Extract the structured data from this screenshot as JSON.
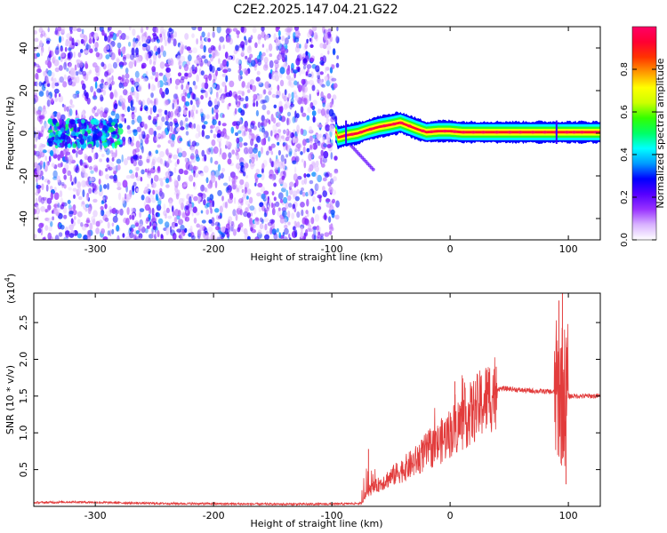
{
  "figure": {
    "title": "C2E2.2025.147.04.21.G22"
  },
  "chart_data": [
    {
      "type": "heatmap",
      "name": "spectrogram",
      "xlabel": "Height of straight line (km)",
      "ylabel": "Frequency (Hz)",
      "xlim": [
        -352,
        127
      ],
      "ylim": [
        -50,
        50
      ],
      "xticks": [
        -300,
        -200,
        -100,
        0,
        100
      ],
      "yticks": [
        -40,
        -20,
        0,
        20,
        40
      ],
      "grid": false,
      "colorbar": {
        "label": "Normalized spectral amplitude",
        "range": [
          0,
          1
        ],
        "ticks": [
          0.0,
          0.2,
          0.4,
          0.6,
          0.8
        ],
        "colormap": [
          "#ffffff",
          "#d9b3ff",
          "#9933ff",
          "#5500ff",
          "#0000ff",
          "#0099ff",
          "#00ffff",
          "#00ff66",
          "#33ff00",
          "#ccff00",
          "#ffff00",
          "#ff9900",
          "#ff3300",
          "#ff0033",
          "#ff0066"
        ]
      },
      "regions": {
        "noise_band": {
          "x": [
            -352,
            -95
          ],
          "level": 0.18
        },
        "noise_cluster": {
          "x": [
            -340,
            -278
          ],
          "center_freq": 0,
          "level": 0.35
        },
        "signal_band": {
          "x": [
            -97,
            127
          ],
          "level": 0.9
        },
        "spur": {
          "x": [
            -85,
            -65
          ],
          "freq": [
            -5,
            -17
          ],
          "level": 0.2
        },
        "signal_freq_profile": [
          {
            "x": -95,
            "f": -2
          },
          {
            "x": -88,
            "f": -1
          },
          {
            "x": -78,
            "f": 0
          },
          {
            "x": -70,
            "f": 1.5
          },
          {
            "x": -60,
            "f": 3
          },
          {
            "x": -50,
            "f": 4
          },
          {
            "x": -42,
            "f": 5
          },
          {
            "x": -35,
            "f": 3.5
          },
          {
            "x": -28,
            "f": 2
          },
          {
            "x": -20,
            "f": 0.5
          },
          {
            "x": -10,
            "f": 1
          },
          {
            "x": 0,
            "f": 1
          },
          {
            "x": 10,
            "f": 0.5
          },
          {
            "x": 30,
            "f": 0.5
          },
          {
            "x": 60,
            "f": 0.5
          },
          {
            "x": 90,
            "f": 0.5
          },
          {
            "x": 127,
            "f": 0.5
          }
        ]
      }
    },
    {
      "type": "line",
      "name": "snr",
      "xlabel": "Height of straight line (km)",
      "ylabel": "SNR (10 * v/v)",
      "y_multiplier": "(x10",
      "y_multiplier_exp": "4",
      "xlim": [
        -352,
        127
      ],
      "ylim": [
        0,
        2.9
      ],
      "xticks": [
        -300,
        -200,
        -100,
        0,
        100
      ],
      "yticks": [
        0.5,
        1.0,
        1.5,
        2.0,
        2.5
      ],
      "ytick_labels": [
        "0.5",
        "1.0",
        "1.5",
        "2.0",
        "2.5"
      ],
      "grid": false,
      "color": "#e23c3c",
      "series": [
        {
          "values_envelope": [
            {
              "x": -352,
              "y": 0.05
            },
            {
              "x": -320,
              "y": 0.06
            },
            {
              "x": -250,
              "y": 0.04
            },
            {
              "x": -150,
              "y": 0.03
            },
            {
              "x": -100,
              "y": 0.03
            },
            {
              "x": -75,
              "y": 0.04
            },
            {
              "x": -70,
              "y": 0.2
            },
            {
              "x": -60,
              "y": 0.3
            },
            {
              "x": -50,
              "y": 0.4
            },
            {
              "x": -40,
              "y": 0.5
            },
            {
              "x": -30,
              "y": 0.6
            },
            {
              "x": -20,
              "y": 0.75
            },
            {
              "x": -10,
              "y": 0.85
            },
            {
              "x": 0,
              "y": 1.0
            },
            {
              "x": 10,
              "y": 1.15
            },
            {
              "x": 20,
              "y": 1.3
            },
            {
              "x": 30,
              "y": 1.45
            },
            {
              "x": 40,
              "y": 1.6
            },
            {
              "x": 50,
              "y": 1.6
            },
            {
              "x": 60,
              "y": 1.58
            },
            {
              "x": 70,
              "y": 1.57
            },
            {
              "x": 85,
              "y": 1.56
            },
            {
              "x": 90,
              "y": 1.55
            },
            {
              "x": 100,
              "y": 1.5
            },
            {
              "x": 127,
              "y": 1.5
            }
          ],
          "spikes": [
            {
              "x": -69,
              "y": 0.78
            },
            {
              "x": 4,
              "y": 1.7
            },
            {
              "x": 39,
              "y": 1.9
            },
            {
              "x": 92,
              "y": 2.8
            },
            {
              "x": 95,
              "y": 2.9
            },
            {
              "x": 98,
              "y": 0.3
            }
          ]
        }
      ]
    }
  ]
}
